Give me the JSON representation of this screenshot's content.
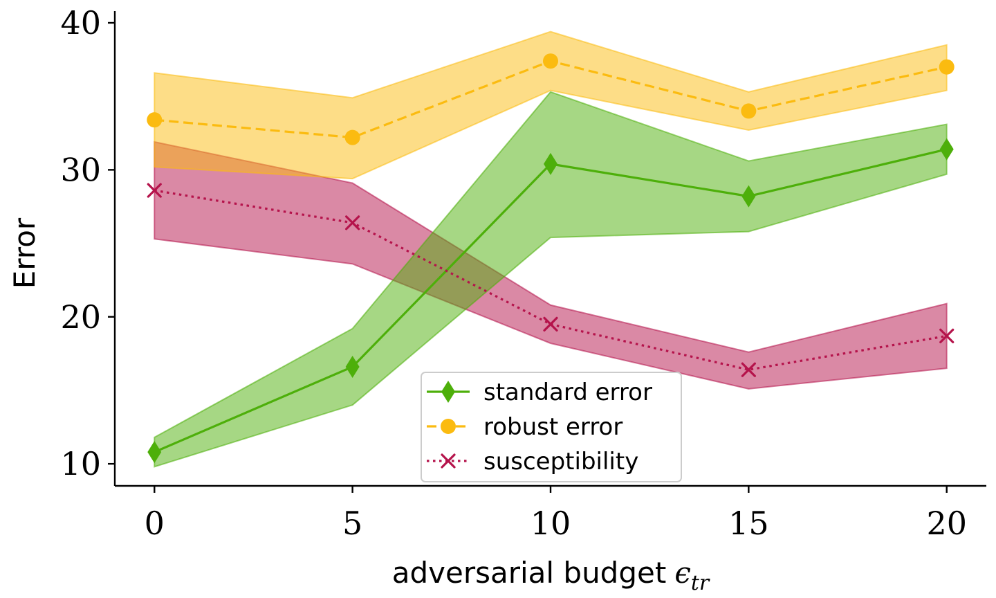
{
  "chart_data": {
    "type": "line",
    "x": [
      0,
      5,
      10,
      15,
      20
    ],
    "xlabel": "adversarial budget",
    "xlabel_symbol": "ϵ",
    "xlabel_subscript": "tr",
    "ylabel": "Error",
    "xlim": [
      -1,
      21
    ],
    "ylim": [
      8.5,
      40.8
    ],
    "xticks": [
      "0",
      "5",
      "10",
      "15",
      "20"
    ],
    "yticks": [
      "10",
      "20",
      "30",
      "40"
    ],
    "grid": false,
    "legend_position": "bottom-center",
    "series": [
      {
        "name": "standard error",
        "color": "#4daf0a",
        "line": "solid",
        "marker": "diamond",
        "values": [
          10.8,
          16.6,
          30.4,
          28.2,
          31.4
        ],
        "lower": [
          9.8,
          14.0,
          25.4,
          25.8,
          29.7
        ],
        "upper": [
          11.8,
          19.2,
          35.3,
          30.6,
          33.1
        ]
      },
      {
        "name": "robust error",
        "color": "#fbbb10",
        "line": "dashed",
        "marker": "circle",
        "values": [
          33.4,
          32.2,
          37.4,
          34.0,
          37.0
        ],
        "lower": [
          30.2,
          29.4,
          35.4,
          32.7,
          35.4
        ],
        "upper": [
          36.6,
          34.9,
          39.4,
          35.3,
          38.5
        ]
      },
      {
        "name": "susceptibility",
        "color": "#b5134b",
        "line": "dotted",
        "marker": "x",
        "values": [
          28.6,
          26.4,
          19.5,
          16.4,
          18.7
        ],
        "lower": [
          25.3,
          23.6,
          18.2,
          15.1,
          16.5
        ],
        "upper": [
          31.9,
          29.1,
          20.8,
          17.6,
          20.9
        ]
      }
    ]
  }
}
